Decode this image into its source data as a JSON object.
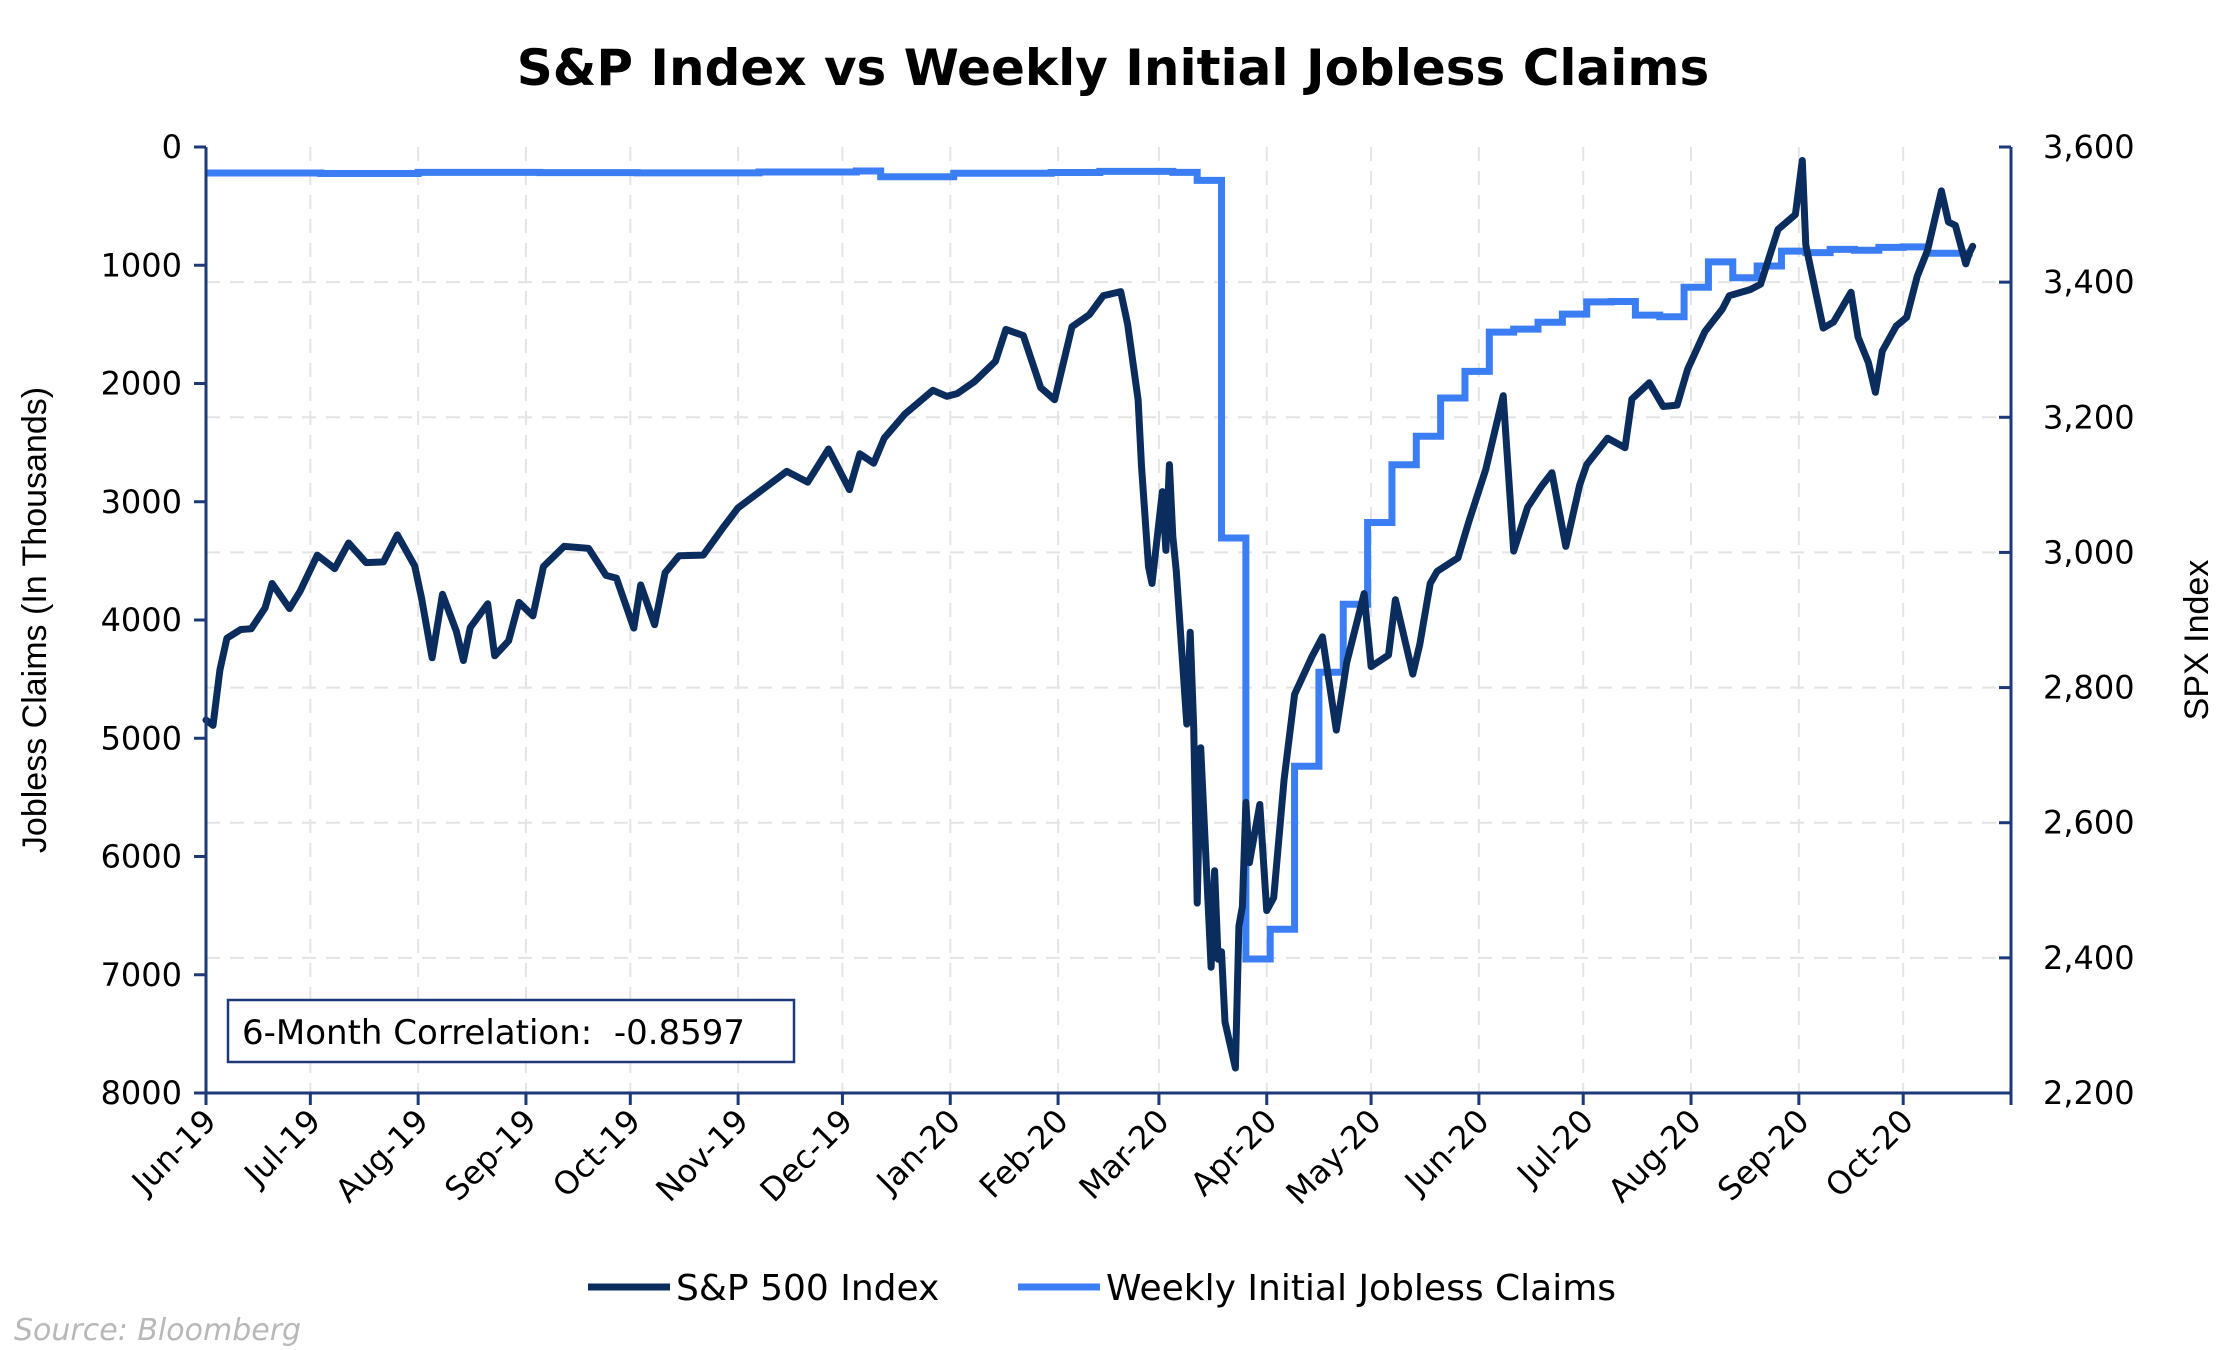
{
  "chart_data": {
    "type": "line",
    "title": "S&P Index vs Weekly Initial Jobless Claims",
    "xlabel": "",
    "ylabel_left": "Jobless Claims (In Thousands)",
    "ylabel_right": "SPX Index",
    "x_range": [
      "2019-06-01",
      "2020-11-01"
    ],
    "x_tick_labels": [
      "Jun-19",
      "Jul-19",
      "Aug-19",
      "Sep-19",
      "Oct-19",
      "Nov-19",
      "Dec-19",
      "Jan-20",
      "Feb-20",
      "Mar-20",
      "Apr-20",
      "May-20",
      "Jun-20",
      "Jul-20",
      "Aug-20",
      "Sep-20",
      "Oct-20",
      ""
    ],
    "y_left": {
      "range": [
        0,
        8000
      ],
      "inverted": true,
      "ticks": [
        0,
        1000,
        2000,
        3000,
        4000,
        5000,
        6000,
        7000,
        8000
      ],
      "tick_labels": [
        "0",
        "1000",
        "2000",
        "3000",
        "4000",
        "5000",
        "6000",
        "7000",
        "8000"
      ]
    },
    "y_right": {
      "range": [
        2200,
        3600
      ],
      "ticks": [
        2200,
        2400,
        2600,
        2800,
        3000,
        3200,
        3400,
        3600
      ],
      "tick_labels": [
        "2,200",
        "2,400",
        "2,600",
        "2,800",
        "3,000",
        "3,200",
        "3,400",
        "3,600"
      ]
    },
    "grid": true,
    "legend_position": "bottom",
    "annotation": "6-Month Correlation:  -0.8597",
    "colors": {
      "sp500": "#0b2d5e",
      "claims": "#3b7ef4",
      "axis": "#1c3a78",
      "grid": "#e4e4e4"
    },
    "series": [
      {
        "name": "S&P 500 Index",
        "axis": "right",
        "points": [
          [
            "2019-06-01",
            2752
          ],
          [
            "2019-06-03",
            2744
          ],
          [
            "2019-06-05",
            2826
          ],
          [
            "2019-06-07",
            2873
          ],
          [
            "2019-06-11",
            2886
          ],
          [
            "2019-06-14",
            2887
          ],
          [
            "2019-06-18",
            2918
          ],
          [
            "2019-06-20",
            2954
          ],
          [
            "2019-06-25",
            2917
          ],
          [
            "2019-06-28",
            2942
          ],
          [
            "2019-07-03",
            2996
          ],
          [
            "2019-07-08",
            2976
          ],
          [
            "2019-07-12",
            3014
          ],
          [
            "2019-07-17",
            2985
          ],
          [
            "2019-07-22",
            2986
          ],
          [
            "2019-07-26",
            3026
          ],
          [
            "2019-07-31",
            2980
          ],
          [
            "2019-08-02",
            2932
          ],
          [
            "2019-08-05",
            2844
          ],
          [
            "2019-08-08",
            2938
          ],
          [
            "2019-08-12",
            2883
          ],
          [
            "2019-08-14",
            2840
          ],
          [
            "2019-08-16",
            2889
          ],
          [
            "2019-08-21",
            2924
          ],
          [
            "2019-08-23",
            2847
          ],
          [
            "2019-08-27",
            2869
          ],
          [
            "2019-08-30",
            2926
          ],
          [
            "2019-09-03",
            2906
          ],
          [
            "2019-09-06",
            2979
          ],
          [
            "2019-09-12",
            3009
          ],
          [
            "2019-09-19",
            3006
          ],
          [
            "2019-09-24",
            2966
          ],
          [
            "2019-09-27",
            2962
          ],
          [
            "2019-10-02",
            2888
          ],
          [
            "2019-10-04",
            2952
          ],
          [
            "2019-10-08",
            2893
          ],
          [
            "2019-10-11",
            2970
          ],
          [
            "2019-10-15",
            2995
          ],
          [
            "2019-10-22",
            2996
          ],
          [
            "2019-10-28",
            3039
          ],
          [
            "2019-11-01",
            3066
          ],
          [
            "2019-11-08",
            3093
          ],
          [
            "2019-11-15",
            3120
          ],
          [
            "2019-11-21",
            3104
          ],
          [
            "2019-11-27",
            3153
          ],
          [
            "2019-12-03",
            3093
          ],
          [
            "2019-12-06",
            3146
          ],
          [
            "2019-12-10",
            3132
          ],
          [
            "2019-12-13",
            3169
          ],
          [
            "2019-12-19",
            3205
          ],
          [
            "2019-12-27",
            3240
          ],
          [
            "2019-12-31",
            3231
          ],
          [
            "2020-01-03",
            3235
          ],
          [
            "2020-01-08",
            3253
          ],
          [
            "2020-01-14",
            3283
          ],
          [
            "2020-01-17",
            3330
          ],
          [
            "2020-01-22",
            3321
          ],
          [
            "2020-01-27",
            3244
          ],
          [
            "2020-01-31",
            3226
          ],
          [
            "2020-02-05",
            3334
          ],
          [
            "2020-02-10",
            3352
          ],
          [
            "2020-02-14",
            3380
          ],
          [
            "2020-02-19",
            3386
          ],
          [
            "2020-02-21",
            3338
          ],
          [
            "2020-02-24",
            3226
          ],
          [
            "2020-02-25",
            3128
          ],
          [
            "2020-02-27",
            2979
          ],
          [
            "2020-02-28",
            2954
          ],
          [
            "2020-03-02",
            3090
          ],
          [
            "2020-03-03",
            3003
          ],
          [
            "2020-03-04",
            3130
          ],
          [
            "2020-03-05",
            3024
          ],
          [
            "2020-03-06",
            2972
          ],
          [
            "2020-03-09",
            2746
          ],
          [
            "2020-03-10",
            2882
          ],
          [
            "2020-03-11",
            2741
          ],
          [
            "2020-03-12",
            2481
          ],
          [
            "2020-03-13",
            2711
          ],
          [
            "2020-03-16",
            2386
          ],
          [
            "2020-03-17",
            2529
          ],
          [
            "2020-03-18",
            2398
          ],
          [
            "2020-03-19",
            2409
          ],
          [
            "2020-03-20",
            2305
          ],
          [
            "2020-03-23",
            2237
          ],
          [
            "2020-03-24",
            2447
          ],
          [
            "2020-03-25",
            2476
          ],
          [
            "2020-03-26",
            2630
          ],
          [
            "2020-03-27",
            2541
          ],
          [
            "2020-03-30",
            2627
          ],
          [
            "2020-04-01",
            2470
          ],
          [
            "2020-04-03",
            2489
          ],
          [
            "2020-04-06",
            2664
          ],
          [
            "2020-04-09",
            2790
          ],
          [
            "2020-04-14",
            2846
          ],
          [
            "2020-04-17",
            2875
          ],
          [
            "2020-04-21",
            2737
          ],
          [
            "2020-04-24",
            2837
          ],
          [
            "2020-04-29",
            2939
          ],
          [
            "2020-05-01",
            2831
          ],
          [
            "2020-05-06",
            2848
          ],
          [
            "2020-05-08",
            2930
          ],
          [
            "2020-05-13",
            2820
          ],
          [
            "2020-05-15",
            2864
          ],
          [
            "2020-05-18",
            2954
          ],
          [
            "2020-05-20",
            2972
          ],
          [
            "2020-05-26",
            2992
          ],
          [
            "2020-05-29",
            3044
          ],
          [
            "2020-06-03",
            3123
          ],
          [
            "2020-06-08",
            3232
          ],
          [
            "2020-06-11",
            3002
          ],
          [
            "2020-06-15",
            3067
          ],
          [
            "2020-06-19",
            3098
          ],
          [
            "2020-06-22",
            3118
          ],
          [
            "2020-06-26",
            3009
          ],
          [
            "2020-06-30",
            3100
          ],
          [
            "2020-07-02",
            3130
          ],
          [
            "2020-07-08",
            3169
          ],
          [
            "2020-07-13",
            3155
          ],
          [
            "2020-07-15",
            3227
          ],
          [
            "2020-07-20",
            3251
          ],
          [
            "2020-07-24",
            3216
          ],
          [
            "2020-07-28",
            3218
          ],
          [
            "2020-07-31",
            3271
          ],
          [
            "2020-08-05",
            3327
          ],
          [
            "2020-08-10",
            3360
          ],
          [
            "2020-08-12",
            3380
          ],
          [
            "2020-08-18",
            3389
          ],
          [
            "2020-08-21",
            3397
          ],
          [
            "2020-08-26",
            3478
          ],
          [
            "2020-08-31",
            3500
          ],
          [
            "2020-09-02",
            3580
          ],
          [
            "2020-09-03",
            3455
          ],
          [
            "2020-09-08",
            3332
          ],
          [
            "2020-09-11",
            3341
          ],
          [
            "2020-09-16",
            3385
          ],
          [
            "2020-09-18",
            3319
          ],
          [
            "2020-09-21",
            3281
          ],
          [
            "2020-09-23",
            3237
          ],
          [
            "2020-09-25",
            3298
          ],
          [
            "2020-09-29",
            3335
          ],
          [
            "2020-10-02",
            3348
          ],
          [
            "2020-10-05",
            3408
          ],
          [
            "2020-10-08",
            3447
          ],
          [
            "2020-10-12",
            3535
          ],
          [
            "2020-10-14",
            3489
          ],
          [
            "2020-10-16",
            3484
          ],
          [
            "2020-10-19",
            3427
          ],
          [
            "2020-10-20",
            3443
          ],
          [
            "2020-10-21",
            3453
          ]
        ]
      },
      {
        "name": "Weekly Initial Jobless Claims",
        "axis": "left",
        "step": true,
        "points": [
          [
            "2019-06-01",
            220
          ],
          [
            "2019-07-04",
            224
          ],
          [
            "2019-08-01",
            215
          ],
          [
            "2019-09-05",
            217
          ],
          [
            "2019-10-03",
            219
          ],
          [
            "2019-11-07",
            211
          ],
          [
            "2019-12-05",
            203
          ],
          [
            "2019-12-12",
            252
          ],
          [
            "2020-01-02",
            222
          ],
          [
            "2020-01-30",
            216
          ],
          [
            "2020-02-13",
            206
          ],
          [
            "2020-03-05",
            215
          ],
          [
            "2020-03-12",
            282
          ],
          [
            "2020-03-19",
            3307
          ],
          [
            "2020-03-26",
            6867
          ],
          [
            "2020-04-02",
            6615
          ],
          [
            "2020-04-09",
            5237
          ],
          [
            "2020-04-16",
            4442
          ],
          [
            "2020-04-23",
            3867
          ],
          [
            "2020-04-30",
            3176
          ],
          [
            "2020-05-07",
            2687
          ],
          [
            "2020-05-14",
            2446
          ],
          [
            "2020-05-21",
            2123
          ],
          [
            "2020-05-28",
            1897
          ],
          [
            "2020-06-04",
            1566
          ],
          [
            "2020-06-11",
            1540
          ],
          [
            "2020-06-18",
            1482
          ],
          [
            "2020-06-25",
            1413
          ],
          [
            "2020-07-02",
            1310
          ],
          [
            "2020-07-09",
            1307
          ],
          [
            "2020-07-16",
            1422
          ],
          [
            "2020-07-23",
            1435
          ],
          [
            "2020-07-30",
            1186
          ],
          [
            "2020-08-06",
            971
          ],
          [
            "2020-08-13",
            1106
          ],
          [
            "2020-08-20",
            1006
          ],
          [
            "2020-08-27",
            881
          ],
          [
            "2020-09-03",
            893
          ],
          [
            "2020-09-10",
            866
          ],
          [
            "2020-09-17",
            873
          ],
          [
            "2020-09-24",
            849
          ],
          [
            "2020-10-01",
            845
          ],
          [
            "2020-10-08",
            898
          ],
          [
            "2020-10-21",
            898
          ]
        ]
      }
    ]
  },
  "source": "Source: Bloomberg"
}
